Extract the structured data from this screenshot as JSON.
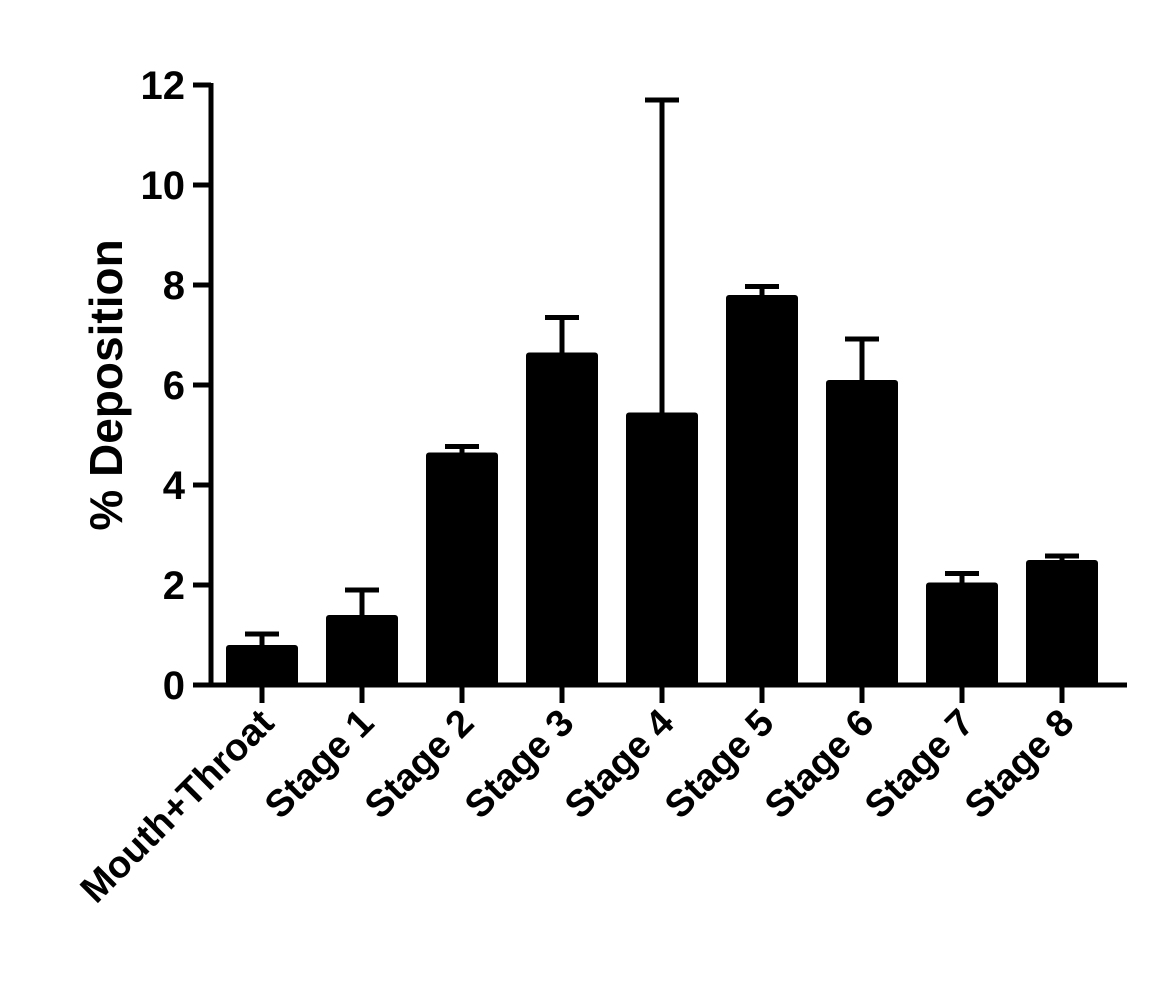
{
  "chart_data": {
    "type": "bar",
    "title": "",
    "xlabel": "",
    "ylabel": "% Deposition",
    "ylim": [
      0,
      12
    ],
    "yticks": [
      0,
      2,
      4,
      6,
      8,
      10,
      12
    ],
    "grid": false,
    "legend": "none",
    "categories": [
      "Mouth+Throat",
      "Stage 1",
      "Stage 2",
      "Stage 3",
      "Stage 4",
      "Stage 5",
      "Stage 6",
      "Stage 7",
      "Stage 8"
    ],
    "series": [
      {
        "values": [
          0.8,
          1.4,
          4.65,
          6.65,
          5.45,
          7.8,
          6.1,
          2.05,
          2.5
        ],
        "error_upper": [
          0.22,
          0.5,
          0.12,
          0.7,
          6.25,
          0.17,
          0.82,
          0.18,
          0.08
        ]
      }
    ],
    "colors": {
      "bar": "#000000",
      "axis": "#000000",
      "background": "#ffffff"
    }
  }
}
